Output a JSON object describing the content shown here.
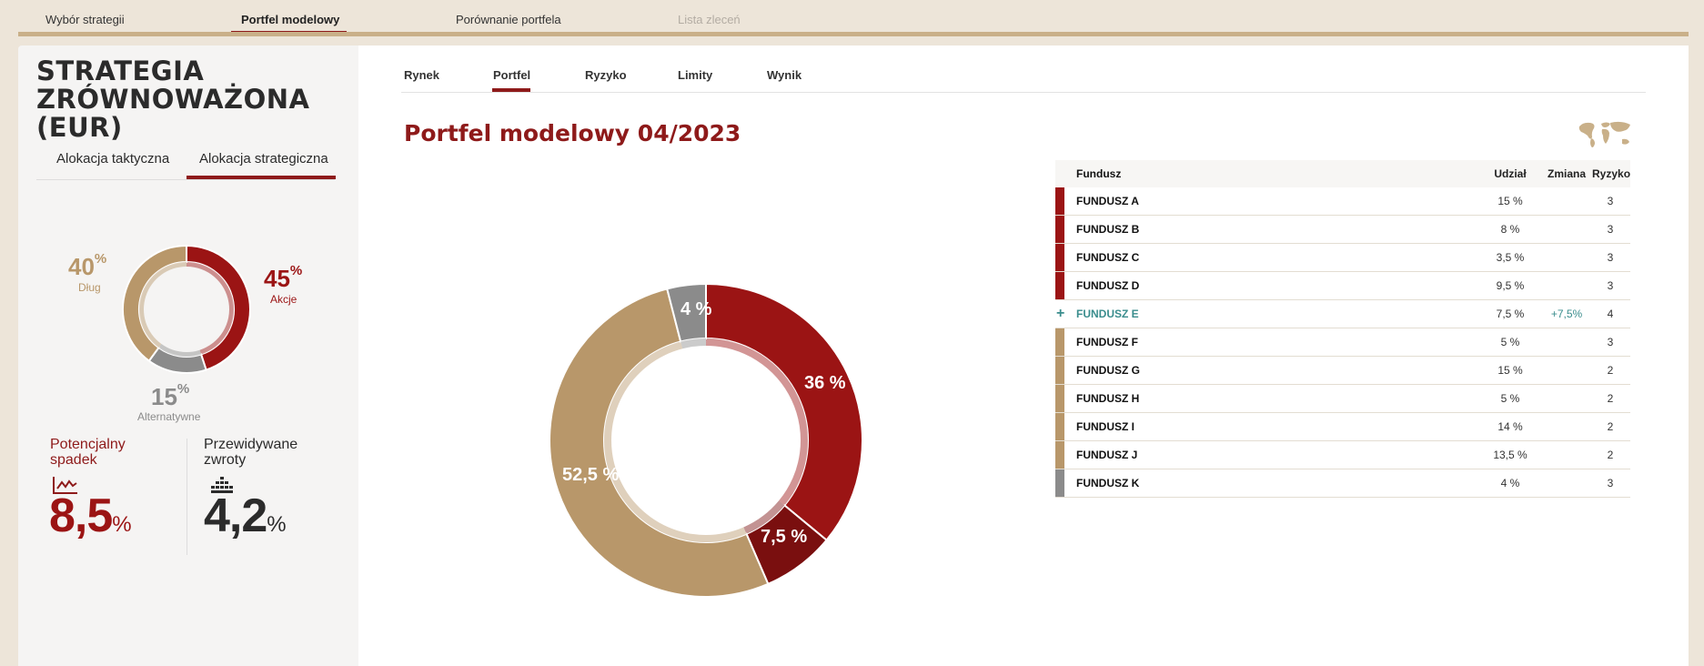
{
  "top_nav": {
    "tabs": [
      {
        "label": "Wybór strategii"
      },
      {
        "label": "Portfel modelowy"
      },
      {
        "label": "Porównanie portfela"
      },
      {
        "label": "Lista zleceń"
      }
    ],
    "active_index": 1
  },
  "strategy": {
    "title": "STRATEGIA ZRÓWNOWAŻONA (EUR)",
    "allocation_tabs": [
      "Alokacja taktyczna",
      "Alokacja strategiczna"
    ],
    "active_allocation_tab": 1
  },
  "allocation": [
    {
      "value": "40",
      "unit": "%",
      "label": "Dług",
      "share": 40,
      "color": "#b8976a"
    },
    {
      "value": "45",
      "unit": "%",
      "label": "Akcje",
      "share": 45,
      "color": "#9b1414"
    },
    {
      "value": "15",
      "unit": "%",
      "label": "Alternatywne",
      "share": 15,
      "color": "#8b8b8b"
    }
  ],
  "stats": {
    "drop": {
      "label": "Potencjalny spadek",
      "value": "8,5",
      "unit": "%",
      "icon": "chart-line-icon"
    },
    "returns": {
      "label": "Przewidywane zwroty",
      "value": "4,2",
      "unit": "%",
      "icon": "bar-levels-icon"
    }
  },
  "sub_tabs": {
    "items": [
      "Rynek",
      "Portfel",
      "Ryzyko",
      "Limity",
      "Wynik"
    ],
    "active_index": 1
  },
  "portfolio_title": "Portfel modelowy 04/2023",
  "table": {
    "headers": {
      "fund": "Fundusz",
      "share": "Udział",
      "change": "Zmiana",
      "risk": "Ryzyko"
    },
    "rows": [
      {
        "name": "FUNDUSZ A",
        "share": "15 %",
        "change": "",
        "risk": "3",
        "color": "#9b1414",
        "marker": "bar"
      },
      {
        "name": "FUNDUSZ B",
        "share": "8 %",
        "change": "",
        "risk": "3",
        "color": "#9b1414",
        "marker": "bar"
      },
      {
        "name": "FUNDUSZ C",
        "share": "3,5 %",
        "change": "",
        "risk": "3",
        "color": "#9b1414",
        "marker": "bar"
      },
      {
        "name": "FUNDUSZ D",
        "share": "9,5 %",
        "change": "",
        "risk": "3",
        "color": "#9b1414",
        "marker": "bar"
      },
      {
        "name": "FUNDUSZ E",
        "share": "7,5 %",
        "change": "+7,5%",
        "risk": "4",
        "color": "#3a8d8d",
        "marker": "plus"
      },
      {
        "name": "FUNDUSZ F",
        "share": "5 %",
        "change": "",
        "risk": "3",
        "color": "#b8976a",
        "marker": "bar"
      },
      {
        "name": "FUNDUSZ G",
        "share": "15 %",
        "change": "",
        "risk": "2",
        "color": "#b8976a",
        "marker": "bar"
      },
      {
        "name": "FUNDUSZ H",
        "share": "5 %",
        "change": "",
        "risk": "2",
        "color": "#b8976a",
        "marker": "bar"
      },
      {
        "name": "FUNDUSZ I",
        "share": "14 %",
        "change": "",
        "risk": "2",
        "color": "#b8976a",
        "marker": "bar"
      },
      {
        "name": "FUNDUSZ J",
        "share": "13,5 %",
        "change": "",
        "risk": "2",
        "color": "#b8976a",
        "marker": "bar"
      },
      {
        "name": "FUNDUSZ K",
        "share": "4 %",
        "change": "",
        "risk": "3",
        "color": "#8b8b8b",
        "marker": "bar"
      }
    ]
  },
  "chart_data": {
    "type": "pie",
    "donut": true,
    "slices": [
      {
        "label": "36 %",
        "value": 36,
        "color": "#9b1414"
      },
      {
        "label": "7,5 %",
        "value": 7.5,
        "color": "#7a0f0f"
      },
      {
        "label": "52,5 %",
        "value": 52.5,
        "color": "#b8976a"
      },
      {
        "label": "4 %",
        "value": 4,
        "color": "#8b8b8b"
      }
    ]
  },
  "colors": {
    "accent": "#8e1a1a",
    "teal": "#3a8d8d",
    "gold": "#b8976a",
    "grey": "#8b8b8b"
  }
}
